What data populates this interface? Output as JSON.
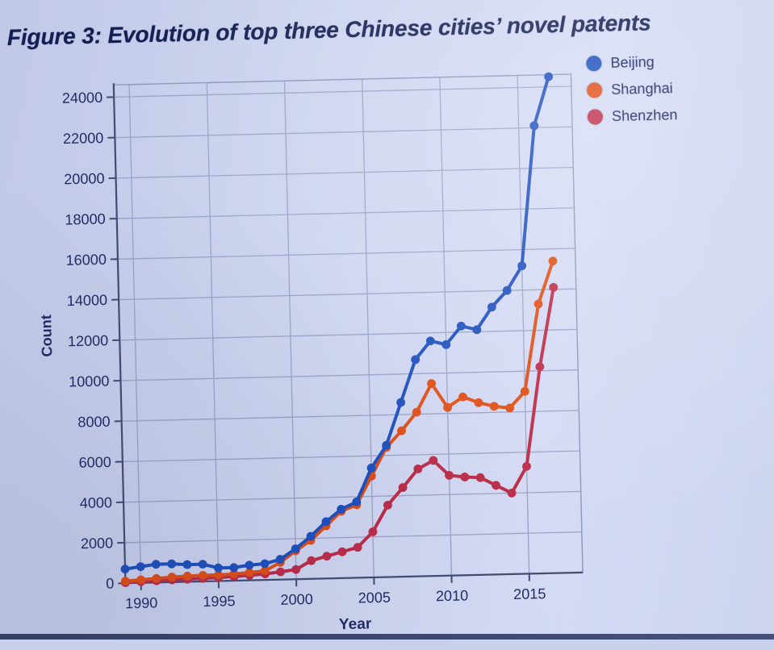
{
  "chart_data": {
    "type": "line",
    "title": "Figure 3: Evolution of top three Chinese cities’ novel patents",
    "xlabel": "Year",
    "ylabel": "Count",
    "x": [
      1989,
      1990,
      1991,
      1992,
      1993,
      1994,
      1995,
      1996,
      1997,
      1998,
      1999,
      2000,
      2001,
      2002,
      2003,
      2004,
      2005,
      2006,
      2007,
      2008,
      2009,
      2010,
      2011,
      2012,
      2013,
      2014,
      2015,
      2016,
      2017
    ],
    "series": [
      {
        "name": "Beijing",
        "color": "#1d4fbe",
        "values": [
          700,
          800,
          900,
          900,
          850,
          850,
          650,
          650,
          750,
          800,
          1000,
          1500,
          2100,
          2800,
          3400,
          3750,
          5400,
          6500,
          8600,
          10700,
          11600,
          11400,
          12300,
          12100,
          13200,
          14000,
          15200,
          22100,
          24500
        ]
      },
      {
        "name": "Shanghai",
        "color": "#e04e16",
        "values": [
          100,
          150,
          200,
          250,
          280,
          300,
          300,
          330,
          380,
          450,
          850,
          1400,
          1900,
          2600,
          3300,
          3600,
          5000,
          6400,
          7200,
          8100,
          9500,
          8300,
          8800,
          8500,
          8300,
          8200,
          9000,
          13300,
          15400
        ]
      },
      {
        "name": "Shenzhen",
        "color": "#bd2c48",
        "values": [
          30,
          60,
          90,
          110,
          130,
          150,
          180,
          200,
          250,
          300,
          380,
          480,
          900,
          1100,
          1300,
          1500,
          2250,
          3550,
          4400,
          5300,
          5700,
          4950,
          4850,
          4800,
          4400,
          4000,
          5300,
          10200,
          14100
        ]
      }
    ],
    "xticks": [
      1990,
      1995,
      2000,
      2005,
      2010,
      2015
    ],
    "yticks": [
      0,
      2000,
      4000,
      6000,
      8000,
      10000,
      12000,
      14000,
      16000,
      18000,
      20000,
      22000,
      24000
    ],
    "xlim": [
      1989,
      2018.45
    ],
    "ylim": [
      0,
      24600
    ],
    "grid": true,
    "legend_position": "top-right",
    "colors": {
      "grid": "#99a3c6",
      "frame": "#8d97bd",
      "axis": "#414d74",
      "text": "#1f2c66"
    }
  }
}
